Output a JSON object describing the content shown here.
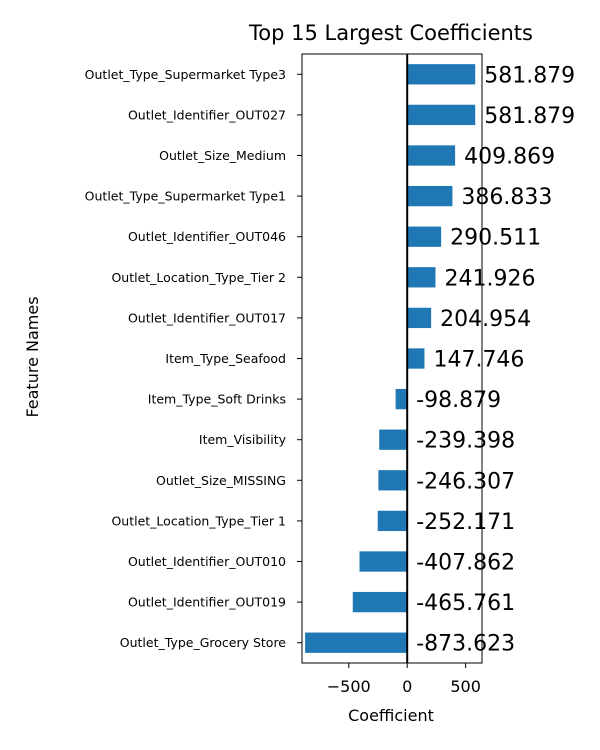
{
  "chart_data": {
    "type": "bar",
    "orientation": "horizontal",
    "title": "Top 15 Largest Coefficients",
    "xlabel": "Coefficient",
    "ylabel": "Feature Names",
    "xlim": [
      -900,
      640
    ],
    "xticks": [
      -500,
      0,
      500
    ],
    "xtick_labels": [
      "−500",
      "0",
      "500"
    ],
    "bar_color": "#1f77b4",
    "zero_line": true,
    "grid": false,
    "categories": [
      "Outlet_Type_Supermarket Type3",
      "Outlet_Identifier_OUT027",
      "Outlet_Size_Medium",
      "Outlet_Type_Supermarket Type1",
      "Outlet_Identifier_OUT046",
      "Outlet_Location_Type_Tier 2",
      "Outlet_Identifier_OUT017",
      "Item_Type_Seafood",
      "Item_Type_Soft Drinks",
      "Item_Visibility",
      "Outlet_Size_MISSING",
      "Outlet_Location_Type_Tier 1",
      "Outlet_Identifier_OUT010",
      "Outlet_Identifier_OUT019",
      "Outlet_Type_Grocery Store"
    ],
    "values": [
      581.879,
      581.879,
      409.869,
      386.833,
      290.511,
      241.926,
      204.954,
      147.746,
      -98.879,
      -239.398,
      -246.307,
      -252.171,
      -407.862,
      -465.761,
      -873.623
    ],
    "value_labels": [
      "581.879",
      "581.879",
      "409.869",
      "386.833",
      "290.511",
      "241.926",
      "204.954",
      "147.746",
      "-98.879",
      "-239.398",
      "-246.307",
      "-252.171",
      "-407.862",
      "-465.761",
      "-873.623"
    ]
  }
}
